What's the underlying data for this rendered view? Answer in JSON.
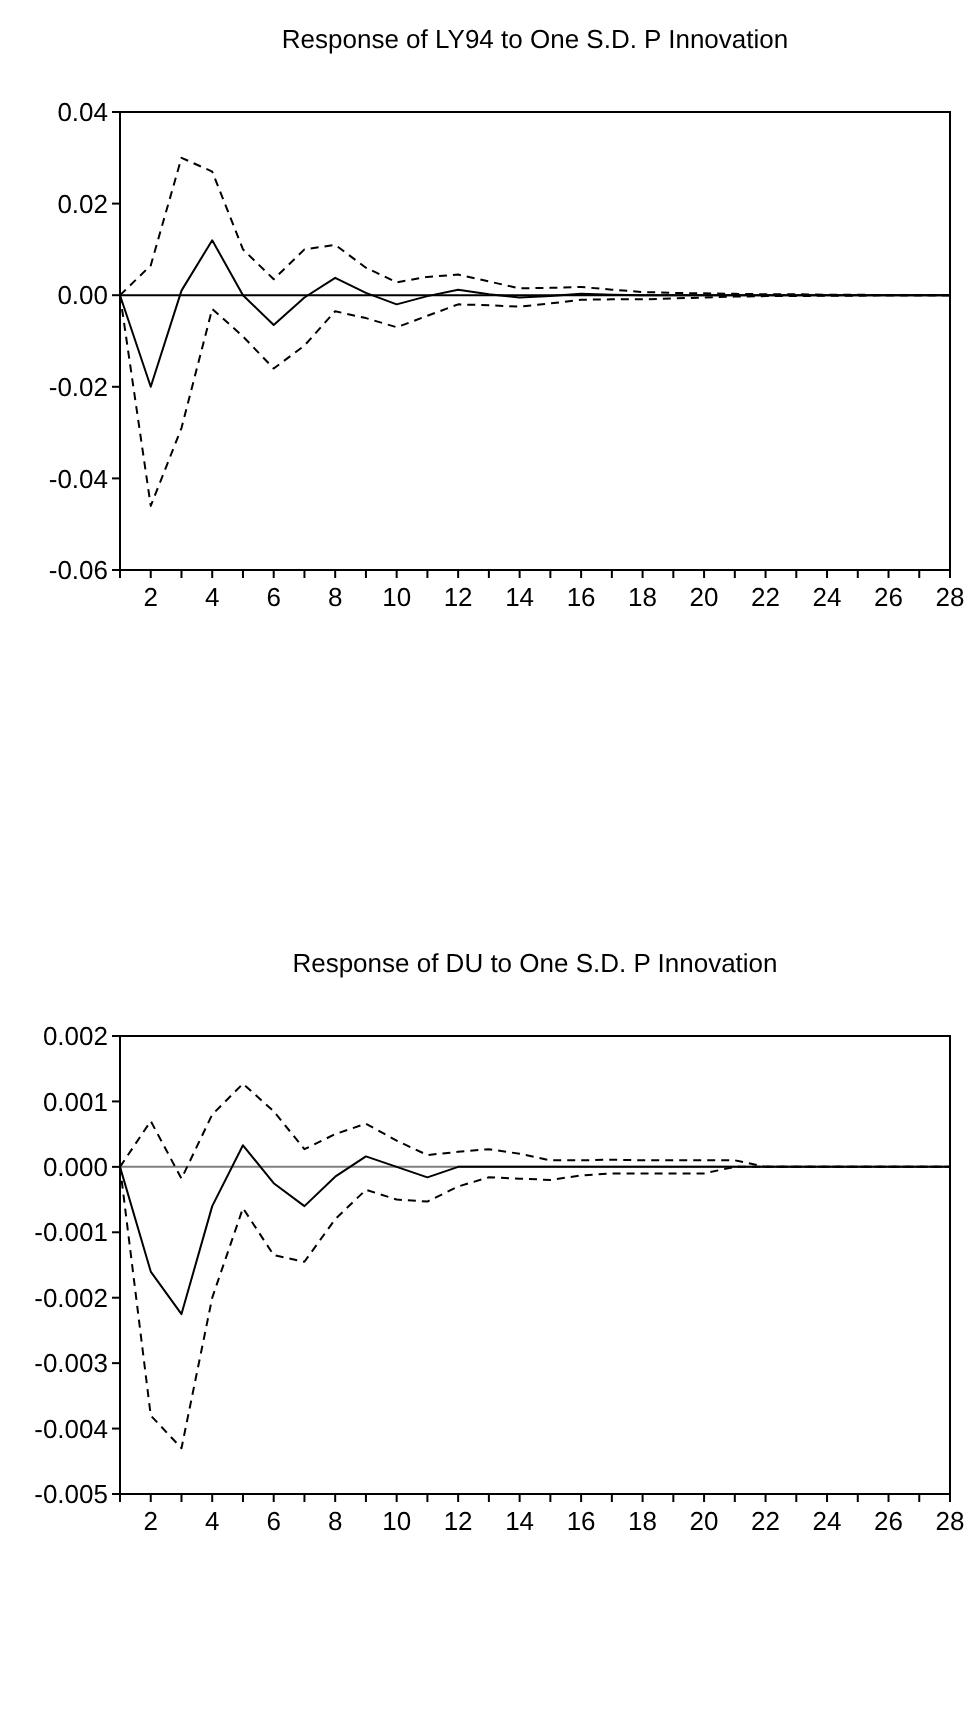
{
  "chart_data": [
    {
      "type": "line",
      "title": "Response of LY94 to One S.D. P Innovation",
      "x": [
        1,
        2,
        3,
        4,
        5,
        6,
        7,
        8,
        9,
        10,
        11,
        12,
        13,
        14,
        15,
        16,
        17,
        18,
        19,
        20,
        21,
        22,
        23,
        24,
        25,
        26,
        27,
        28
      ],
      "xlim": [
        1,
        28
      ],
      "xticks": [
        {
          "value": 1,
          "label": null
        },
        2,
        {
          "value": 3,
          "label": null
        },
        4,
        {
          "value": 5,
          "label": null
        },
        6,
        {
          "value": 7,
          "label": null
        },
        8,
        {
          "value": 9,
          "label": null
        },
        10,
        {
          "value": 11,
          "label": null
        },
        12,
        {
          "value": 13,
          "label": null
        },
        14,
        {
          "value": 15,
          "label": null
        },
        16,
        {
          "value": 17,
          "label": null
        },
        18,
        {
          "value": 19,
          "label": null
        },
        20,
        {
          "value": 21,
          "label": null
        },
        22,
        {
          "value": 23,
          "label": null
        },
        24,
        {
          "value": 25,
          "label": null
        },
        26,
        {
          "value": 27,
          "label": null
        },
        28
      ],
      "ylim": [
        -0.06,
        0.04
      ],
      "yticks": [
        -0.06,
        -0.04,
        -0.02,
        {
          "value": 0,
          "label": "0.00"
        },
        0.02,
        0.04
      ],
      "grid": false,
      "ref_lines": [
        {
          "axis": "y",
          "value": 0,
          "color": "#000000"
        }
      ],
      "series": [
        {
          "color": "#000000",
          "line_style": "solid",
          "values": [
            0,
            -0.02,
            0.001,
            0.012,
            0,
            -0.0065,
            -0.0005,
            0.0038,
            0.0005,
            -0.002,
            -0.0002,
            0.0012,
            0.0002,
            -0.0005,
            -0.0002,
            0.0003,
            0.0001,
            0,
            0,
            0,
            0,
            0,
            0,
            0,
            0,
            0,
            0,
            0
          ]
        },
        {
          "color": "#000000",
          "line_style": "dashed",
          "values": [
            0,
            0.0065,
            0.03,
            0.027,
            0.01,
            0.0035,
            0.01,
            0.011,
            0.006,
            0.0028,
            0.004,
            0.0045,
            0.003,
            0.0015,
            0.0016,
            0.0018,
            0.0012,
            0.0007,
            0.0005,
            0.0004,
            0.0003,
            0.0002,
            0.0002,
            0.0001,
            0.0001,
            0,
            0,
            0
          ]
        },
        {
          "color": "#000000",
          "line_style": "dashed",
          "values": [
            0,
            -0.046,
            -0.029,
            -0.003,
            -0.009,
            -0.016,
            -0.011,
            -0.0035,
            -0.005,
            -0.007,
            -0.0045,
            -0.002,
            -0.0022,
            -0.0025,
            -0.0018,
            -0.001,
            -0.0009,
            -0.0009,
            -0.0007,
            -0.0005,
            -0.0003,
            -0.0002,
            -0.0002,
            -0.0001,
            -0.0001,
            0,
            0,
            0
          ]
        }
      ]
    },
    {
      "type": "line",
      "title": "Response of DU to One S.D. P Innovation",
      "x": [
        1,
        2,
        3,
        4,
        5,
        6,
        7,
        8,
        9,
        10,
        11,
        12,
        13,
        14,
        15,
        16,
        17,
        18,
        19,
        20,
        21,
        22,
        23,
        24,
        25,
        26,
        27,
        28
      ],
      "xlim": [
        1,
        28
      ],
      "xticks": [
        {
          "value": 1,
          "label": null
        },
        2,
        {
          "value": 3,
          "label": null
        },
        4,
        {
          "value": 5,
          "label": null
        },
        6,
        {
          "value": 7,
          "label": null
        },
        8,
        {
          "value": 9,
          "label": null
        },
        10,
        {
          "value": 11,
          "label": null
        },
        12,
        {
          "value": 13,
          "label": null
        },
        14,
        {
          "value": 15,
          "label": null
        },
        16,
        {
          "value": 17,
          "label": null
        },
        18,
        {
          "value": 19,
          "label": null
        },
        20,
        {
          "value": 21,
          "label": null
        },
        22,
        {
          "value": 23,
          "label": null
        },
        24,
        {
          "value": 25,
          "label": null
        },
        26,
        {
          "value": 27,
          "label": null
        },
        28
      ],
      "ylim": [
        -0.005,
        0.002
      ],
      "yticks": [
        {
          "value": -0.005,
          "label": "-0.005"
        },
        {
          "value": -0.004,
          "label": "-0.004"
        },
        {
          "value": -0.003,
          "label": "-0.003"
        },
        {
          "value": -0.002,
          "label": "-0.002"
        },
        {
          "value": -0.001,
          "label": "-0.001"
        },
        {
          "value": 0,
          "label": "0.000"
        },
        {
          "value": 0.001,
          "label": "0.001"
        },
        {
          "value": 0.002,
          "label": "0.002"
        }
      ],
      "grid": false,
      "ref_lines": [
        {
          "axis": "y",
          "value": 0,
          "color": "#808080"
        }
      ],
      "series": [
        {
          "color": "#000000",
          "line_style": "solid",
          "values": [
            0,
            -0.0016,
            -0.00225,
            -0.0006,
            0.00033,
            -0.00025,
            -0.0006,
            -0.00015,
            0.00016,
            0,
            -0.00016,
            0,
            0,
            0,
            0,
            0,
            0,
            0,
            0,
            0,
            0,
            0,
            0,
            0,
            0,
            0,
            0,
            0
          ]
        },
        {
          "color": "#000000",
          "line_style": "dashed",
          "values": [
            0,
            0.0007,
            -0.00018,
            0.0008,
            0.00127,
            0.00085,
            0.00027,
            0.0005,
            0.00066,
            0.0004,
            0.00018,
            0.00023,
            0.00027,
            0.0002,
            0.0001,
            0.0001,
            0.00011,
            0.0001,
            0.0001,
            0.0001,
            0.0001,
            0,
            0,
            0,
            0,
            0,
            0,
            0
          ]
        },
        {
          "color": "#000000",
          "line_style": "dashed",
          "values": [
            0,
            -0.0038,
            -0.0043,
            -0.002,
            -0.00063,
            -0.00135,
            -0.00145,
            -0.0008,
            -0.00035,
            -0.0005,
            -0.00053,
            -0.0003,
            -0.00016,
            -0.00018,
            -0.0002,
            -0.00013,
            -0.0001,
            -0.0001,
            -0.0001,
            -0.0001,
            0,
            0,
            0,
            0,
            0,
            0,
            0,
            0
          ]
        }
      ]
    }
  ]
}
